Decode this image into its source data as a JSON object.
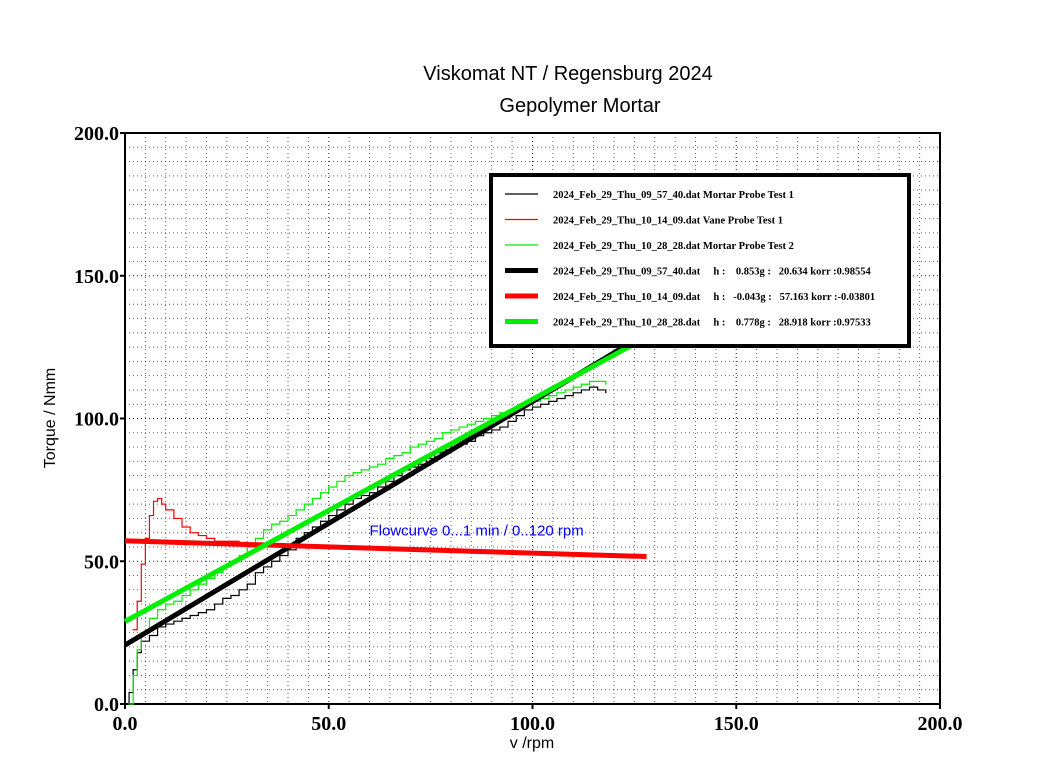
{
  "chart_data": {
    "type": "line",
    "title": "Viskomat NT / Regensburg 2024",
    "subtitle": "Gepolymer Mortar",
    "xlabel": "v /rpm",
    "ylabel": "Torque / Nmm",
    "xlim": [
      0,
      200
    ],
    "ylim": [
      0,
      200
    ],
    "x_ticks": [
      "0.0",
      "50.0",
      "100.0",
      "150.0",
      "200.0"
    ],
    "y_ticks": [
      "0.0",
      "50.0",
      "100.0",
      "150.0",
      "200.0"
    ],
    "grid": true,
    "legend_position": "top-right",
    "annotation": {
      "text": "Flowcurve 0...1 min / 0..120 rpm",
      "color": "#0000ff",
      "x": 60,
      "y": 59
    },
    "series": [
      {
        "name": "2024_Feb_29_Thu_09_57_40.dat Mortar Probe Test 1",
        "kind": "measured",
        "color": "#000000",
        "x": [
          0,
          1,
          2,
          3,
          4,
          6,
          8,
          10,
          12,
          14,
          16,
          18,
          20,
          22,
          24,
          26,
          28,
          30,
          32,
          34,
          36,
          38,
          40,
          42,
          44,
          46,
          48,
          50,
          52,
          54,
          56,
          58,
          60,
          62,
          64,
          66,
          68,
          70,
          72,
          74,
          76,
          78,
          80,
          82,
          84,
          86,
          88,
          90,
          92,
          94,
          96,
          98,
          100,
          102,
          104,
          106,
          108,
          110,
          112,
          114,
          116,
          118
        ],
        "y": [
          0,
          4,
          12,
          18,
          22,
          24,
          27,
          28,
          29,
          30,
          31,
          32,
          33,
          35,
          37,
          38,
          40,
          42,
          46,
          48,
          50,
          52,
          54,
          58,
          60,
          62,
          64,
          66,
          68,
          70,
          72,
          73,
          74,
          76,
          78,
          80,
          82,
          83,
          84,
          86,
          88,
          89,
          90,
          91,
          92,
          94,
          95,
          96,
          97,
          99,
          101,
          103,
          104,
          105,
          106,
          107,
          108,
          109,
          110,
          111,
          110,
          109
        ]
      },
      {
        "name": "2024_Feb_29_Thu_10_14_09.dat Vane Probe Test 1",
        "kind": "measured",
        "color": "#ff0000",
        "x": [
          2,
          3,
          4,
          5,
          6,
          7,
          8,
          9,
          10,
          12,
          14,
          16,
          18,
          20,
          22,
          24,
          26,
          28,
          30,
          32,
          34
        ],
        "y": [
          26,
          36,
          49,
          58,
          66,
          71,
          72,
          70,
          68,
          65,
          62,
          60,
          59,
          58,
          57,
          57,
          57,
          56,
          56,
          56,
          56
        ]
      },
      {
        "name": "2024_Feb_29_Thu_10_28_28.dat Mortar Probe Test 2",
        "kind": "measured",
        "color": "#00ee00",
        "x": [
          1,
          2,
          3,
          4,
          6,
          8,
          10,
          12,
          14,
          16,
          18,
          20,
          22,
          24,
          26,
          28,
          30,
          32,
          34,
          36,
          38,
          40,
          42,
          44,
          46,
          48,
          50,
          52,
          54,
          56,
          58,
          60,
          62,
          64,
          66,
          68,
          70,
          72,
          74,
          76,
          78,
          80,
          82,
          84,
          86,
          88,
          90,
          92,
          94,
          96,
          98,
          100,
          102,
          104,
          106,
          108,
          110,
          112,
          114,
          116,
          118
        ],
        "y": [
          0,
          10,
          19,
          25,
          30,
          33,
          35,
          36,
          38,
          40,
          42,
          44,
          46,
          48,
          50,
          52,
          55,
          58,
          61,
          63,
          64,
          66,
          68,
          70,
          72,
          74,
          76,
          78,
          80,
          81,
          82,
          83,
          84,
          86,
          87,
          88,
          90,
          91,
          92,
          93,
          95,
          96,
          97,
          98,
          99,
          100,
          101,
          102,
          103,
          104,
          105,
          106,
          107,
          108,
          109,
          110,
          111,
          112,
          113,
          113,
          112
        ]
      },
      {
        "name": "2024_Feb_29_Thu_09_57_40.dat",
        "kind": "fit",
        "color": "#000000",
        "h": "0.853g",
        "g": "20.634",
        "korr": "0.98554",
        "x": [
          0,
          127
        ],
        "y": [
          20.634,
          128.97
        ]
      },
      {
        "name": "2024_Feb_29_Thu_10_14_09.dat",
        "kind": "fit",
        "color": "#ff0000",
        "h": "-0.043g",
        "g": "57.163",
        "korr": "-0.03801",
        "x": [
          0,
          128
        ],
        "y": [
          57.163,
          51.66
        ]
      },
      {
        "name": "2024_Feb_29_Thu_10_28_28.dat",
        "kind": "fit",
        "color": "#00ee00",
        "h": "0.778g",
        "g": "28.918",
        "korr": "0.97533",
        "x": [
          0,
          127
        ],
        "y": [
          28.918,
          127.72
        ]
      }
    ],
    "legend": [
      {
        "text": "2024_Feb_29_Thu_09_57_40.dat Mortar Probe Test 1",
        "color": "#000000",
        "thick": false
      },
      {
        "text": "2024_Feb_29_Thu_10_14_09.dat Vane Probe Test 1",
        "color": "#ff0000",
        "thick": false
      },
      {
        "text": "2024_Feb_29_Thu_10_28_28.dat Mortar Probe Test 2",
        "color": "#00ee00",
        "thick": false
      },
      {
        "text": "2024_Feb_29_Thu_09_57_40.dat     h :    0.853g :   20.634 korr :0.98554",
        "color": "#000000",
        "thick": true
      },
      {
        "text": "2024_Feb_29_Thu_10_14_09.dat     h :   -0.043g :   57.163 korr :-0.03801",
        "color": "#ff0000",
        "thick": true
      },
      {
        "text": "2024_Feb_29_Thu_10_28_28.dat     h :    0.778g :   28.918 korr :0.97533",
        "color": "#00ee00",
        "thick": true
      }
    ]
  }
}
